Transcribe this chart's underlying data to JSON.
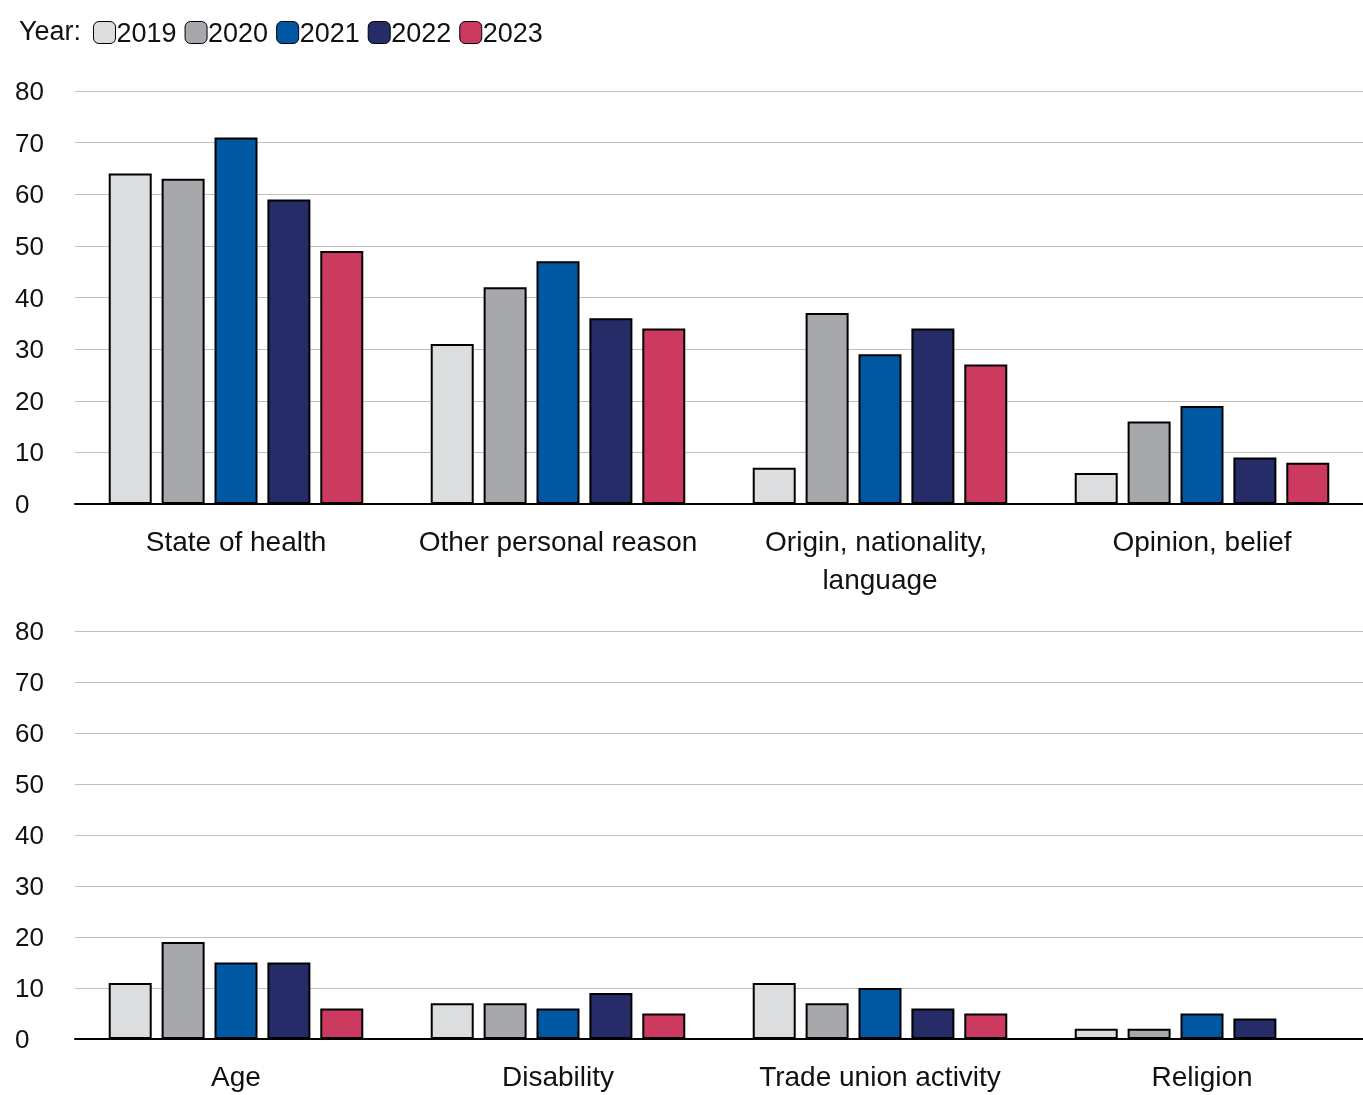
{
  "chart_data": [
    {
      "type": "bar",
      "legend_title": "Year:",
      "legend": "top left",
      "grid": "y",
      "categories": [
        "State of health",
        "Other personal reason",
        "Origin, nationality, language",
        "Opinion, belief"
      ],
      "series": [
        {
          "name": "2019",
          "color": "#dcdddf",
          "values": [
            64,
            31,
            7,
            6
          ]
        },
        {
          "name": "2020",
          "color": "#a7a8ab",
          "values": [
            63,
            42,
            37,
            16
          ]
        },
        {
          "name": "2021",
          "color": "#0058a3",
          "values": [
            71,
            47,
            29,
            19
          ]
        },
        {
          "name": "2022",
          "color": "#252c67",
          "values": [
            59,
            36,
            34,
            9
          ]
        },
        {
          "name": "2023",
          "color": "#cc3a5f",
          "values": [
            49,
            34,
            27,
            8
          ]
        }
      ],
      "ylim": [
        0,
        80
      ],
      "yticks": [
        0,
        10,
        20,
        30,
        40,
        50,
        60,
        70,
        80
      ]
    },
    {
      "type": "bar",
      "grid": "y",
      "categories": [
        "Age",
        "Disability",
        "Trade union activity",
        "Religion"
      ],
      "series": [
        {
          "color": "#dcdddf",
          "values": [
            11,
            7,
            11,
            2
          ]
        },
        {
          "color": "#a7a8ab",
          "values": [
            19,
            7,
            7,
            2
          ]
        },
        {
          "color": "#0058a3",
          "values": [
            15,
            6,
            10,
            5
          ]
        },
        {
          "color": "#252c67",
          "values": [
            15,
            9,
            6,
            4
          ]
        },
        {
          "color": "#cc3a5f",
          "values": [
            6,
            5,
            5,
            null
          ]
        }
      ],
      "ylim": [
        0,
        80
      ],
      "yticks": [
        0,
        10,
        20,
        30,
        40,
        50,
        60,
        70,
        80
      ]
    }
  ]
}
